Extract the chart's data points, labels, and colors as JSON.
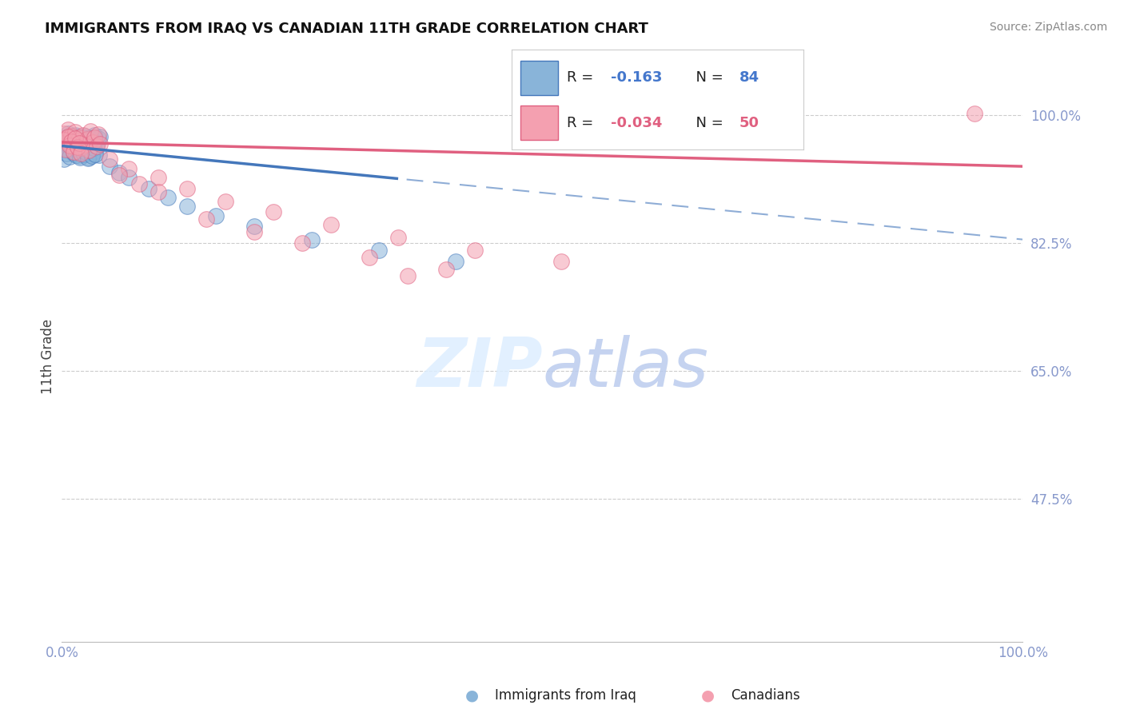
{
  "title": "IMMIGRANTS FROM IRAQ VS CANADIAN 11TH GRADE CORRELATION CHART",
  "source": "Source: ZipAtlas.com",
  "ylabel": "11th Grade",
  "ytick_labels": [
    "100.0%",
    "82.5%",
    "65.0%",
    "47.5%"
  ],
  "ytick_values": [
    1.0,
    0.825,
    0.65,
    0.475
  ],
  "xlim": [
    0.0,
    1.0
  ],
  "ylim": [
    0.28,
    1.06
  ],
  "legend_r_iraq": "-0.163",
  "legend_n_iraq": "84",
  "legend_r_canada": "-0.034",
  "legend_n_canada": "50",
  "color_iraq": "#89B4D9",
  "color_canada": "#F4A0B0",
  "color_iraq_dark": "#4477BB",
  "color_canada_dark": "#E06080",
  "color_axis": "#8899CC",
  "color_grid": "#CCCCCC",
  "color_text_blue": "#4477CC",
  "watermark_color": "#DDEEFF",
  "iraq_x": [
    0.002,
    0.003,
    0.004,
    0.005,
    0.006,
    0.007,
    0.008,
    0.009,
    0.01,
    0.011,
    0.012,
    0.013,
    0.014,
    0.015,
    0.016,
    0.017,
    0.018,
    0.019,
    0.02,
    0.021,
    0.022,
    0.023,
    0.024,
    0.025,
    0.026,
    0.027,
    0.028,
    0.029,
    0.03,
    0.031,
    0.032,
    0.033,
    0.034,
    0.035,
    0.036,
    0.037,
    0.038,
    0.039,
    0.04,
    0.002,
    0.003,
    0.004,
    0.005,
    0.006,
    0.007,
    0.008,
    0.009,
    0.01,
    0.011,
    0.012,
    0.013,
    0.014,
    0.015,
    0.016,
    0.017,
    0.018,
    0.019,
    0.02,
    0.021,
    0.022,
    0.023,
    0.024,
    0.025,
    0.026,
    0.027,
    0.028,
    0.029,
    0.03,
    0.031,
    0.032,
    0.033,
    0.034,
    0.035,
    0.05,
    0.06,
    0.07,
    0.09,
    0.11,
    0.13,
    0.16,
    0.2,
    0.26,
    0.33,
    0.41
  ],
  "iraq_y": [
    0.965,
    0.97,
    0.955,
    0.96,
    0.975,
    0.958,
    0.952,
    0.968,
    0.962,
    0.971,
    0.948,
    0.966,
    0.973,
    0.95,
    0.957,
    0.963,
    0.944,
    0.969,
    0.956,
    0.961,
    0.947,
    0.964,
    0.972,
    0.953,
    0.959,
    0.967,
    0.942,
    0.97,
    0.954,
    0.96,
    0.946,
    0.965,
    0.973,
    0.951,
    0.958,
    0.962,
    0.968,
    0.945,
    0.971,
    0.94,
    0.955,
    0.962,
    0.948,
    0.966,
    0.972,
    0.943,
    0.968,
    0.957,
    0.963,
    0.949,
    0.964,
    0.971,
    0.945,
    0.959,
    0.954,
    0.967,
    0.942,
    0.961,
    0.956,
    0.969,
    0.947,
    0.962,
    0.95,
    0.965,
    0.941,
    0.958,
    0.953,
    0.968,
    0.944,
    0.96,
    0.955,
    0.97,
    0.946,
    0.93,
    0.921,
    0.915,
    0.9,
    0.888,
    0.876,
    0.862,
    0.848,
    0.83,
    0.815,
    0.8
  ],
  "canada_x": [
    0.002,
    0.004,
    0.006,
    0.008,
    0.01,
    0.012,
    0.014,
    0.016,
    0.018,
    0.02,
    0.022,
    0.024,
    0.026,
    0.028,
    0.03,
    0.032,
    0.034,
    0.036,
    0.038,
    0.04,
    0.002,
    0.004,
    0.006,
    0.008,
    0.01,
    0.012,
    0.014,
    0.016,
    0.018,
    0.02,
    0.05,
    0.07,
    0.1,
    0.13,
    0.17,
    0.22,
    0.28,
    0.35,
    0.43,
    0.52,
    0.15,
    0.2,
    0.25,
    0.32,
    0.4,
    0.1,
    0.08,
    0.06,
    0.95,
    0.36
  ],
  "canada_y": [
    0.975,
    0.968,
    0.98,
    0.962,
    0.972,
    0.958,
    0.977,
    0.965,
    0.97,
    0.955,
    0.973,
    0.96,
    0.967,
    0.952,
    0.978,
    0.963,
    0.969,
    0.957,
    0.974,
    0.961,
    0.966,
    0.953,
    0.971,
    0.959,
    0.964,
    0.95,
    0.968,
    0.956,
    0.962,
    0.948,
    0.94,
    0.927,
    0.915,
    0.9,
    0.882,
    0.868,
    0.85,
    0.833,
    0.815,
    0.8,
    0.858,
    0.84,
    0.825,
    0.806,
    0.789,
    0.895,
    0.906,
    0.918,
    1.002,
    0.78
  ],
  "line_iraq_x0": 0.0,
  "line_iraq_x1": 1.0,
  "line_iraq_y0": 0.958,
  "line_iraq_y1": 0.83,
  "line_canada_x0": 0.0,
  "line_canada_x1": 1.0,
  "line_canada_y0": 0.963,
  "line_canada_y1": 0.93
}
